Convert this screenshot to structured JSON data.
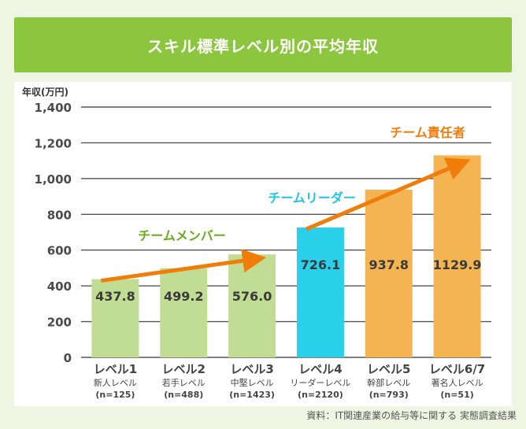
{
  "title": "スキル標準レベル別の平均年収",
  "source": "資料：IT関連産業の給与等に関する 実態調査結果",
  "colors": {
    "background": "#eef5e2",
    "title_bar": "#8cc63f",
    "member_bar": "#c1dd94",
    "leader_bar": "#2ad0ea",
    "manager_bar": "#f4b451",
    "arrow": "#f07c0a",
    "member_label": "#6aaa1e",
    "leader_label": "#22c4e4",
    "manager_label": "#f07c0a"
  },
  "chart_data": {
    "type": "bar",
    "ylabel": "年収(万円)",
    "ylim": [
      0,
      1400
    ],
    "yticks": [
      "0",
      "200",
      "400",
      "600",
      "800",
      "1,000",
      "1,200",
      "1,400"
    ],
    "grid": true,
    "categories": [
      {
        "label": "レベル1",
        "sub": "新人レベル",
        "n": "(n=125)"
      },
      {
        "label": "レベル2",
        "sub": "若手レベル",
        "n": "(n=488)"
      },
      {
        "label": "レベル3",
        "sub": "中堅レベル",
        "n": "(n=1423)"
      },
      {
        "label": "レベル4",
        "sub": "リーダーレベル",
        "n": "(n=2120)"
      },
      {
        "label": "レベル5",
        "sub": "幹部レベル",
        "n": "(n=793)"
      },
      {
        "label": "レベル6/7",
        "sub": "著名人レベル",
        "n": "(n=51)"
      }
    ],
    "values": [
      437.8,
      499.2,
      576.0,
      726.1,
      937.8,
      1129.9
    ],
    "value_labels": [
      "437.8",
      "499.2",
      "576.0",
      "726.1",
      "937.8",
      "1129.9"
    ],
    "groups": [
      {
        "name": "チームメンバー",
        "indices": [
          0,
          1,
          2
        ],
        "color_key": "member_bar",
        "label_color_key": "member_label"
      },
      {
        "name": "チームリーダー",
        "indices": [
          3
        ],
        "color_key": "leader_bar",
        "label_color_key": "leader_label"
      },
      {
        "name": "チーム責任者",
        "indices": [
          4,
          5
        ],
        "color_key": "manager_bar",
        "label_color_key": "manager_label"
      }
    ],
    "trend_arrows": [
      {
        "from": 437.8,
        "to": 576.0,
        "from_index": 0,
        "to_index": 2
      },
      {
        "from": 726.1,
        "to": 1129.9,
        "from_index": 3,
        "to_index": 5
      }
    ]
  }
}
